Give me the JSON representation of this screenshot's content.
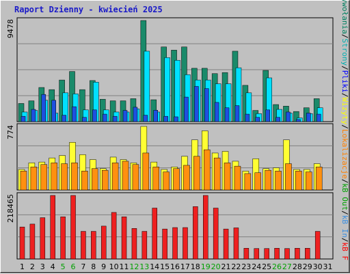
{
  "title": "Raport Dzienny - kwiecień 2025",
  "legend": [
    {
      "label": "Wywołania",
      "color": "#008060"
    },
    {
      "label": "Strony",
      "color": "#00b0b0"
    },
    {
      "label": "Pliki",
      "color": "#0000ff"
    },
    {
      "label": "Wizyty",
      "color": "#ffff00"
    },
    {
      "label": "Lokalizacje",
      "color": "#ff8000"
    },
    {
      "label": "kB Out",
      "color": "#00a000"
    },
    {
      "label": "kB In",
      "color": "#3a8ee0"
    },
    {
      "label": "kB F",
      "color": "#ff0000"
    }
  ],
  "legend_sep": " / ",
  "colors": {
    "hits": "#1a8a6a",
    "pages": "#00e0ff",
    "files": "#1e50e0",
    "visits": "#ffff33",
    "sites": "#ff9010",
    "kbytes": "#ee2020",
    "axis_tick": "#000000",
    "weekend_tick": "#00a000",
    "panel": "#c0c0c0"
  },
  "chart_data": [
    {
      "type": "bar",
      "panel": "top",
      "ymax_label": "9478",
      "ylim": [
        0,
        9478
      ],
      "categories": [
        "1",
        "2",
        "3",
        "4",
        "5",
        "6",
        "7",
        "8",
        "9",
        "10",
        "11",
        "12",
        "13",
        "14",
        "15",
        "16",
        "17",
        "18",
        "19",
        "20",
        "21",
        "22",
        "23",
        "24",
        "25",
        "26",
        "27",
        "28",
        "29",
        "30",
        "31"
      ],
      "series": [
        {
          "name": "Wywołania",
          "values": [
            1700,
            1950,
            3200,
            3000,
            3900,
            4700,
            3000,
            3850,
            2100,
            1950,
            1950,
            2150,
            9478,
            2050,
            7000,
            6700,
            7000,
            5000,
            5000,
            4500,
            4600,
            6600,
            3400,
            1050,
            4800,
            1600,
            1450,
            950,
            1300,
            2150,
            0
          ]
        },
        {
          "name": "Strony",
          "values": [
            900,
            1050,
            2000,
            800,
            2700,
            2600,
            1100,
            3700,
            1100,
            900,
            900,
            1200,
            6600,
            900,
            6000,
            5750,
            4400,
            3900,
            3900,
            3550,
            3550,
            5050,
            2700,
            750,
            4100,
            1150,
            800,
            350,
            750,
            1300,
            0
          ]
        },
        {
          "name": "Pliki",
          "values": [
            500,
            1150,
            2550,
            2000,
            600,
            1400,
            400,
            1100,
            700,
            500,
            1050,
            1350,
            600,
            1070,
            500,
            450,
            2300,
            3300,
            3100,
            1800,
            1300,
            1500,
            700,
            400,
            1100,
            400,
            900,
            200,
            800,
            700,
            0
          ]
        }
      ]
    },
    {
      "type": "bar",
      "panel": "middle",
      "ymax_label": "774",
      "ylim": [
        0,
        774
      ],
      "categories": [
        "1",
        "2",
        "3",
        "4",
        "5",
        "6",
        "7",
        "8",
        "9",
        "10",
        "11",
        "12",
        "13",
        "14",
        "15",
        "16",
        "17",
        "18",
        "19",
        "20",
        "21",
        "22",
        "23",
        "24",
        "25",
        "26",
        "27",
        "28",
        "29",
        "30",
        "31"
      ],
      "series": [
        {
          "name": "Wizyty",
          "values": [
            250,
            330,
            340,
            390,
            420,
            580,
            430,
            370,
            260,
            400,
            370,
            330,
            774,
            340,
            250,
            280,
            410,
            610,
            720,
            450,
            470,
            350,
            230,
            380,
            260,
            270,
            610,
            250,
            250,
            320,
            0
          ]
        },
        {
          "name": "Lokalizacje",
          "values": [
            230,
            280,
            310,
            330,
            320,
            330,
            230,
            260,
            240,
            330,
            350,
            310,
            450,
            280,
            220,
            260,
            300,
            410,
            490,
            390,
            330,
            290,
            200,
            210,
            240,
            230,
            320,
            230,
            220,
            280,
            0
          ]
        }
      ]
    },
    {
      "type": "bar",
      "panel": "bottom",
      "ymax_label": "218465",
      "ylim": [
        0,
        218465
      ],
      "categories": [
        "1",
        "2",
        "3",
        "4",
        "5",
        "6",
        "7",
        "8",
        "9",
        "10",
        "11",
        "12",
        "13",
        "14",
        "15",
        "16",
        "17",
        "18",
        "19",
        "20",
        "21",
        "22",
        "23",
        "24",
        "25",
        "26",
        "27",
        "28",
        "29",
        "30",
        "31"
      ],
      "series": [
        {
          "name": "kB F",
          "values": [
            110000,
            120000,
            142000,
            218465,
            145000,
            218465,
            95000,
            95000,
            113000,
            160000,
            145000,
            105000,
            95000,
            175000,
            103000,
            108000,
            108000,
            180000,
            218465,
            175000,
            103000,
            107000,
            37000,
            36000,
            36000,
            37000,
            36000,
            37000,
            37000,
            95000,
            0
          ]
        }
      ]
    }
  ],
  "weekend_days": [
    "5",
    "6",
    "12",
    "13",
    "19",
    "20",
    "26",
    "27"
  ]
}
